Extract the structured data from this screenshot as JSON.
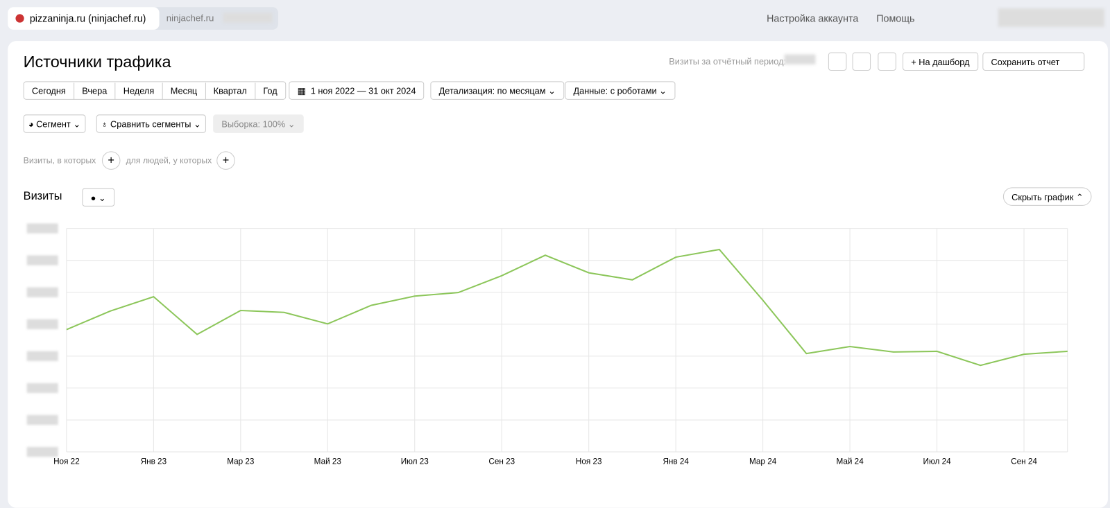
{
  "header": {
    "site": "pizzaninja.ru (ninjachef.ru)",
    "site2": "ninjachef.ru",
    "account": "Настройка аккаунта",
    "help": "Помощь"
  },
  "toolbar": {
    "title": "Источники трафика",
    "visits_label": "Визиты за отчётный период:",
    "dashboard": "На дашборд",
    "save": "Сохранить отчет",
    "periods": [
      "Сегодня",
      "Вчера",
      "Неделя",
      "Месяц",
      "Квартал",
      "Год"
    ],
    "date_range": "1 ноя 2022 — 31 окт 2024",
    "detail": "Детализация: по месяцам",
    "data": "Данные: с роботами",
    "segment": "Сегмент",
    "compare": "Сравнить сегменты",
    "sample": "Выборка: 100%",
    "filter1": "Визиты, в которых",
    "filter2": "для людей, у которых",
    "hide_chart": "Скрыть график"
  },
  "chart_data": {
    "type": "line",
    "title": "Визиты",
    "categories": [
      "Ноя 22",
      null,
      "Янв 23",
      null,
      "Мар 23",
      null,
      "Май 23",
      null,
      "Июл 23",
      null,
      "Сен 23",
      null,
      "Ноя 23",
      null,
      "Янв 24",
      null,
      "Мар 24",
      null,
      "Май 24",
      null,
      "Июл 24",
      null,
      "Сен 24",
      null
    ],
    "values": [
      3.83,
      4.41,
      4.86,
      3.68,
      4.43,
      4.37,
      4.01,
      4.59,
      4.88,
      4.99,
      5.52,
      6.16,
      5.61,
      5.39,
      6.1,
      6.34,
      4.75,
      3.08,
      3.3,
      3.13,
      3.15,
      2.71,
      3.06,
      3.15
    ],
    "color": "#8cc65a",
    "ylim": [
      0,
      7
    ],
    "yticks": [
      0,
      1,
      2,
      3,
      4,
      5,
      6,
      7
    ],
    "grid": true
  }
}
